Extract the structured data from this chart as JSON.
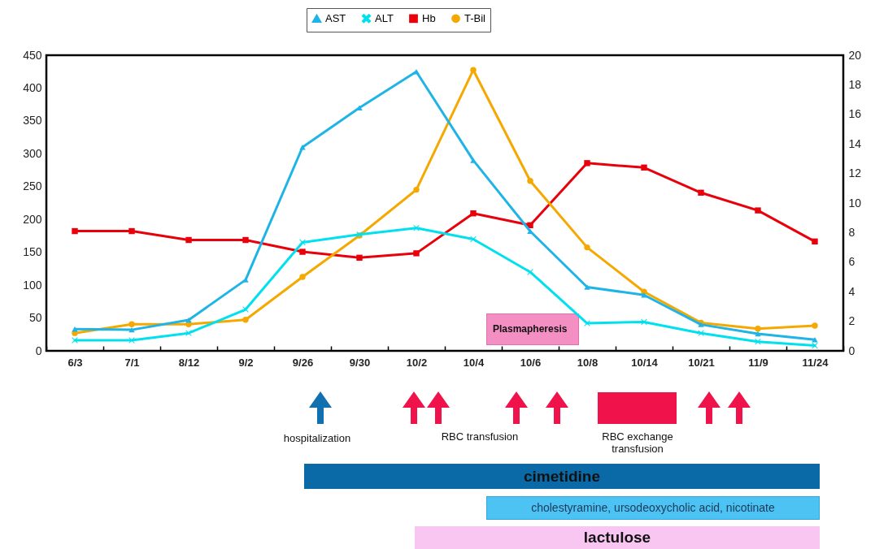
{
  "chart_data": {
    "type": "line",
    "categories": [
      "6/3",
      "7/1",
      "8/12",
      "9/2",
      "9/26",
      "9/30",
      "10/2",
      "10/4",
      "10/6",
      "10/8",
      "10/14",
      "10/21",
      "11/9",
      "11/24"
    ],
    "series": [
      {
        "name": "AST",
        "color": "#1fb4e6",
        "marker": "triangle",
        "values": [
          33,
          32,
          47,
          108,
          310,
          370,
          425,
          290,
          182,
          97,
          85,
          40,
          26,
          17
        ]
      },
      {
        "name": "ALT",
        "color": "#00e0ee",
        "marker": "cross",
        "values": [
          16,
          16,
          27,
          63,
          165,
          177,
          187,
          170,
          120,
          42,
          44,
          27,
          14,
          8
        ]
      },
      {
        "name": "Hb",
        "color": "#e8000b",
        "marker": "square",
        "axis": "y2",
        "values": [
          8.1,
          8.1,
          7.5,
          7.5,
          6.7,
          6.3,
          6.6,
          9.3,
          8.5,
          12.7,
          12.4,
          10.7,
          9.5,
          7.4
        ]
      },
      {
        "name": "T-Bil",
        "color": "#f5a800",
        "marker": "circle",
        "axis": "y2",
        "values": [
          1.2,
          1.8,
          1.8,
          2.1,
          5.0,
          7.8,
          10.9,
          19.0,
          11.5,
          7.0,
          4.0,
          1.9,
          1.5,
          1.7
        ]
      }
    ],
    "ylim": [
      0,
      450
    ],
    "yticks": [
      0,
      50,
      100,
      150,
      200,
      250,
      300,
      350,
      400,
      450
    ],
    "y2lim": [
      0,
      20
    ],
    "y2ticks": [
      0,
      2,
      4,
      6,
      8,
      10,
      12,
      14,
      16,
      18,
      20
    ],
    "legend": "top",
    "annotations": [
      "Plasmapheresis",
      "hospitalization",
      "RBC transfusion",
      "RBC exchange transfusion",
      "cimetidine",
      "cholestyramine, ursodeoxycholic acid, nicotinate",
      "lactulose"
    ]
  }
}
